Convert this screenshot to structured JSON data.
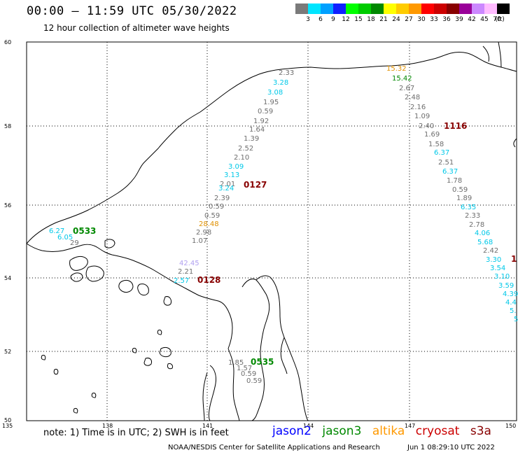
{
  "header": {
    "title": "00:00 – 11:59 UTC 05/30/2022",
    "subtitle": "12 hour collection of altimeter wave heights"
  },
  "colorbar": {
    "colors": [
      "#7a7a7a",
      "#00e5ff",
      "#00a0ff",
      "#1020ff",
      "#00ff00",
      "#00cc00",
      "#008800",
      "#ffff00",
      "#ffcc00",
      "#ff9900",
      "#ff0000",
      "#cc0000",
      "#880000",
      "#990099",
      "#cc88ff",
      "#ffbbff",
      "#000000"
    ],
    "labels": [
      "3",
      "6",
      "9",
      "12",
      "15",
      "18",
      "21",
      "24",
      "27",
      "30",
      "33",
      "36",
      "39",
      "42",
      "45",
      "70",
      "(ft)"
    ]
  },
  "axes": {
    "lon_labels": [
      "135",
      "138",
      "141",
      "144",
      "147",
      "150"
    ],
    "lat_labels": [
      "60",
      "58",
      "56",
      "54",
      "52",
      "50"
    ]
  },
  "colors": {
    "gray": "#6e6e6e",
    "cyan": "#00c8e8",
    "jason2": "#0000ff",
    "jason3": "#008800",
    "altika": "#ff9900",
    "cryosat": "#cc0000",
    "s3a": "#880000",
    "orange": "#e09000",
    "violet": "#b0a0f0"
  },
  "passes": [
    {
      "label": "0533",
      "color": "jason3"
    },
    {
      "label": "0127",
      "color": "s3a"
    },
    {
      "label": "0128",
      "color": "s3a"
    },
    {
      "label": "0535",
      "color": "jason3"
    },
    {
      "label": "1116",
      "color": "s3a"
    },
    {
      "label": "1",
      "color": "s3a"
    }
  ],
  "track_values": {
    "north_track": [
      {
        "v": "2.33",
        "c": "gray"
      },
      {
        "v": "3.28",
        "c": "cyan"
      },
      {
        "v": "3.08",
        "c": "cyan"
      },
      {
        "v": "1.95",
        "c": "gray"
      },
      {
        "v": "0.59",
        "c": "gray"
      },
      {
        "v": "1.92",
        "c": "gray"
      },
      {
        "v": "1.64",
        "c": "gray"
      },
      {
        "v": "1.39",
        "c": "gray"
      },
      {
        "v": "2.52",
        "c": "gray"
      },
      {
        "v": "2.10",
        "c": "gray"
      },
      {
        "v": "3.09",
        "c": "cyan"
      },
      {
        "v": "3.13",
        "c": "cyan"
      },
      {
        "v": "2.01",
        "c": "gray"
      },
      {
        "v": "3.24",
        "c": "cyan"
      },
      {
        "v": "2.39",
        "c": "gray"
      },
      {
        "v": "0.59",
        "c": "gray"
      },
      {
        "v": "0.59",
        "c": "gray"
      },
      {
        "v": "28.48",
        "c": "orange"
      },
      {
        "v": "2.98",
        "c": "gray"
      },
      {
        "v": "1.07",
        "c": "gray"
      }
    ],
    "east_track": [
      {
        "v": "15.32",
        "c": "orange"
      },
      {
        "v": "15.42",
        "c": "jason3"
      },
      {
        "v": "2.67",
        "c": "gray"
      },
      {
        "v": "2.48",
        "c": "gray"
      },
      {
        "v": "2.16",
        "c": "gray"
      },
      {
        "v": "1.09",
        "c": "gray"
      },
      {
        "v": "2.40",
        "c": "gray"
      },
      {
        "v": "1.69",
        "c": "gray"
      },
      {
        "v": "1.58",
        "c": "gray"
      },
      {
        "v": "6.37",
        "c": "cyan"
      },
      {
        "v": "2.51",
        "c": "gray"
      },
      {
        "v": "6.37",
        "c": "cyan"
      },
      {
        "v": "1.78",
        "c": "gray"
      },
      {
        "v": "0.59",
        "c": "gray"
      },
      {
        "v": "1.89",
        "c": "gray"
      },
      {
        "v": "6.35",
        "c": "cyan"
      },
      {
        "v": "2.33",
        "c": "gray"
      },
      {
        "v": "2.78",
        "c": "gray"
      },
      {
        "v": "4.06",
        "c": "cyan"
      },
      {
        "v": "5.68",
        "c": "cyan"
      },
      {
        "v": "2.42",
        "c": "gray"
      },
      {
        "v": "3.30",
        "c": "cyan"
      },
      {
        "v": "3.54",
        "c": "cyan"
      },
      {
        "v": "3.10",
        "c": "cyan"
      },
      {
        "v": "3.59",
        "c": "cyan"
      },
      {
        "v": "4.39",
        "c": "cyan"
      },
      {
        "v": "4.4",
        "c": "cyan"
      },
      {
        "v": "5.",
        "c": "cyan"
      },
      {
        "v": "5",
        "c": "cyan"
      }
    ],
    "west_track": [
      {
        "v": "6.27",
        "c": "cyan"
      },
      {
        "v": "6.05",
        "c": "cyan"
      },
      {
        "v": "29",
        "c": "gray"
      }
    ],
    "mid_track": [
      {
        "v": "42.45",
        "c": "violet"
      },
      {
        "v": "2.21",
        "c": "gray"
      },
      {
        "v": "2.57",
        "c": "cyan"
      }
    ],
    "south_track": [
      {
        "v": "1.85",
        "c": "gray"
      },
      {
        "v": "1.57",
        "c": "gray"
      },
      {
        "v": "0.59",
        "c": "gray"
      },
      {
        "v": "0.59",
        "c": "gray"
      }
    ]
  },
  "footer": {
    "note": "note: 1) Time is in UTC; 2) SWH is in feet",
    "legend": [
      {
        "name": "jason2",
        "color": "jason2"
      },
      {
        "name": "jason3",
        "color": "jason3"
      },
      {
        "name": "altika",
        "color": "altika"
      },
      {
        "name": "cryosat",
        "color": "cryosat"
      },
      {
        "name": "s3a",
        "color": "s3a"
      }
    ],
    "credit": "NOAA/NESDIS Center for Satellite Applications and Research",
    "timestamp": "Jun  1 08:29:10 UTC 2022"
  }
}
